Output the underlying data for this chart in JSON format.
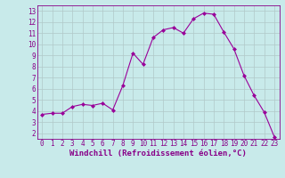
{
  "x": [
    0,
    1,
    2,
    3,
    4,
    5,
    6,
    7,
    8,
    9,
    10,
    11,
    12,
    13,
    14,
    15,
    16,
    17,
    18,
    19,
    20,
    21,
    22,
    23
  ],
  "y": [
    3.7,
    3.8,
    3.8,
    4.4,
    4.6,
    4.5,
    4.7,
    4.1,
    6.3,
    9.2,
    8.2,
    10.6,
    11.3,
    11.5,
    11.0,
    12.3,
    12.8,
    12.7,
    11.1,
    9.6,
    7.2,
    5.4,
    3.9,
    1.7
  ],
  "line_color": "#990099",
  "marker": "D",
  "marker_size": 2,
  "bg_color": "#c8eaea",
  "grid_color": "#b0c8c8",
  "xlabel": "Windchill (Refroidissement éolien,°C)",
  "xlim": [
    -0.5,
    23.5
  ],
  "ylim": [
    1.5,
    13.5
  ],
  "yticks": [
    2,
    3,
    4,
    5,
    6,
    7,
    8,
    9,
    10,
    11,
    12,
    13
  ],
  "xticks": [
    0,
    1,
    2,
    3,
    4,
    5,
    6,
    7,
    8,
    9,
    10,
    11,
    12,
    13,
    14,
    15,
    16,
    17,
    18,
    19,
    20,
    21,
    22,
    23
  ],
  "tick_label_fontsize": 5.5,
  "xlabel_fontsize": 6.5,
  "text_color": "#880088"
}
